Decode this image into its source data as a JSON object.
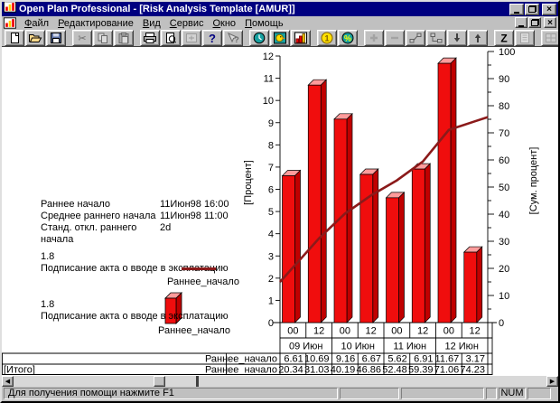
{
  "window": {
    "title": "Open Plan Professional - [Risk Analysis Template [AMUR]]"
  },
  "menu": {
    "items": [
      {
        "name": "file",
        "label": "Файл"
      },
      {
        "name": "edit",
        "label": "Редактирование"
      },
      {
        "name": "view",
        "label": "Вид"
      },
      {
        "name": "tools",
        "label": "Сервис"
      },
      {
        "name": "window",
        "label": "Окно"
      },
      {
        "name": "help",
        "label": "Помощь"
      }
    ]
  },
  "toolbar": {
    "groups": [
      [
        {
          "name": "new-document",
          "disabled": false
        },
        {
          "name": "open-file",
          "disabled": false
        },
        {
          "name": "save",
          "disabled": false
        }
      ],
      [
        {
          "name": "cut",
          "disabled": true
        },
        {
          "name": "copy",
          "disabled": true
        },
        {
          "name": "paste",
          "disabled": true
        }
      ],
      [
        {
          "name": "print",
          "disabled": false
        },
        {
          "name": "print-preview",
          "disabled": false
        },
        {
          "name": "insert-activity",
          "disabled": true
        },
        {
          "name": "help",
          "disabled": false
        },
        {
          "name": "context-help",
          "disabled": true
        }
      ],
      [
        {
          "name": "time-analysis",
          "disabled": false
        },
        {
          "name": "resource-analysis",
          "disabled": false
        },
        {
          "name": "risk-histogram",
          "disabled": false
        }
      ],
      [
        {
          "name": "cost",
          "disabled": false
        },
        {
          "name": "percent-complete",
          "disabled": false
        }
      ],
      [
        {
          "name": "add-activity",
          "disabled": true
        },
        {
          "name": "remove-activity",
          "disabled": true
        },
        {
          "name": "link-activities",
          "disabled": false
        },
        {
          "name": "unlink-activities",
          "disabled": false
        },
        {
          "name": "move-down",
          "disabled": false
        },
        {
          "name": "move-up",
          "disabled": false
        }
      ],
      [
        {
          "name": "sort",
          "disabled": false
        },
        {
          "name": "notes",
          "disabled": true
        }
      ],
      [
        {
          "name": "split-view",
          "disabled": true
        },
        {
          "name": "cascade-view",
          "disabled": true
        }
      ]
    ]
  },
  "info_panel": {
    "rows": [
      {
        "label": "Раннее начало",
        "value": "11Июн98 16:00"
      },
      {
        "label": "Среднее раннего начала",
        "value": "11Июн98 11:00"
      },
      {
        "label": "Станд. откл. раннего начала",
        "value": "2d"
      }
    ]
  },
  "legends": [
    {
      "code": "1.8",
      "activity": "Подписание акта о вводе в эксплатацию",
      "series": "Раннее_начало",
      "swatch": "line"
    },
    {
      "code": "1.8",
      "activity": "Подписание акта о вводе в эксплатацию",
      "series": "Раннее_начало",
      "swatch": "bar"
    }
  ],
  "chart_data": {
    "type": "bar+line",
    "title": "",
    "x_time_labels": [
      "00",
      "12",
      "00",
      "12",
      "00",
      "12",
      "00",
      "12"
    ],
    "x_date_labels": [
      "09 Июн",
      "10 Июн",
      "11 Июн",
      "12 Июн"
    ],
    "left_axis": {
      "label": "[Процент]",
      "min": 0,
      "max": 12,
      "tick_step": 1,
      "ticks": [
        0,
        1,
        2,
        3,
        4,
        5,
        6,
        7,
        8,
        9,
        10,
        11,
        12
      ]
    },
    "right_axis": {
      "label": "[Сум. процент]",
      "min": 0,
      "max": 100,
      "tick_step": 10,
      "minor_step": 5,
      "ticks": [
        0,
        10,
        20,
        30,
        40,
        50,
        60,
        70,
        80,
        90,
        100
      ]
    },
    "series": [
      {
        "name": "Раннее_начало",
        "type": "bar",
        "axis": "left",
        "color": "#f00d0d",
        "color_top": "#ff9c9c",
        "color_side": "#c00000",
        "values": [
          6.61,
          10.69,
          9.16,
          6.67,
          5.62,
          6.91,
          11.67,
          3.17
        ]
      },
      {
        "name": "Раннее_начало",
        "type": "line",
        "axis": "right",
        "row_label": "[Итого]",
        "color": "#8b1a1a",
        "values": [
          20.34,
          31.03,
          40.19,
          46.86,
          52.48,
          59.39,
          71.06,
          74.23
        ]
      }
    ],
    "grid": false,
    "legend_position": "left"
  },
  "status_bar": {
    "message": "Для получения помощи нажмите F1",
    "num_indicator": "NUM"
  }
}
